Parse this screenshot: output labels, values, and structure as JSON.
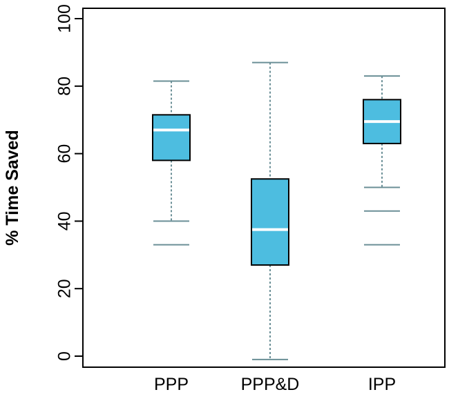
{
  "chart_data": {
    "type": "box",
    "title": "",
    "xlabel": "",
    "ylabel": "% Time Saved",
    "ylim": [
      0,
      100
    ],
    "yticks": [
      0,
      20,
      40,
      60,
      80,
      100
    ],
    "grid": false,
    "legend": "none",
    "categories": [
      "PPP",
      "PPP&D",
      "IPP"
    ],
    "boxes": [
      {
        "category": "PPP",
        "whisker_low": 40,
        "q1": 58,
        "median": 67,
        "q3": 71.5,
        "whisker_high": 81.5,
        "outliers": [
          33
        ]
      },
      {
        "category": "PPP&D",
        "whisker_low": -1,
        "q1": 27,
        "median": 37.5,
        "q3": 52.5,
        "whisker_high": 87,
        "outliers": []
      },
      {
        "category": "IPP",
        "whisker_low": 50,
        "q1": 63,
        "median": 69.5,
        "q3": 76,
        "whisker_high": 83,
        "outliers": [
          43,
          33
        ]
      }
    ],
    "colors": {
      "box_fill": "#4dbde0",
      "median": "#ffffff",
      "whisker": "#6a8f96",
      "frame": "#000000"
    }
  }
}
